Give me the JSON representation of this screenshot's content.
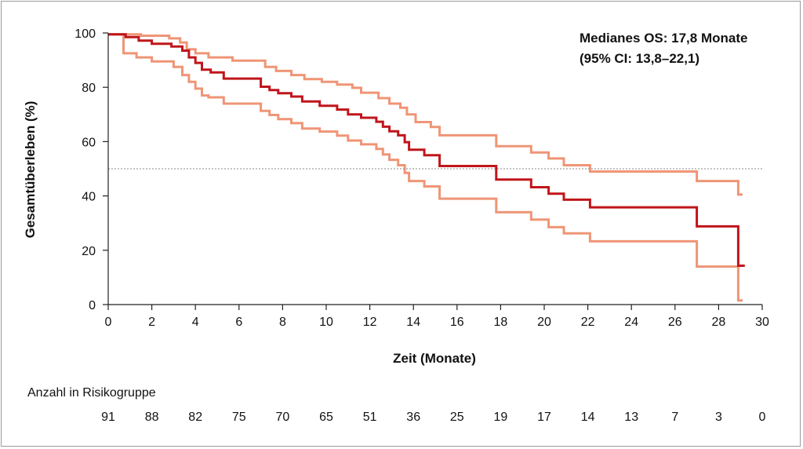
{
  "chart_data": {
    "type": "line",
    "xlabel": "Zeit (Monate)",
    "ylabel": "Gesamtüberleben (%)",
    "xlim": [
      0,
      30
    ],
    "ylim": [
      0,
      100
    ],
    "x_ticks": [
      0,
      2,
      4,
      6,
      8,
      10,
      12,
      14,
      16,
      18,
      20,
      22,
      24,
      26,
      28,
      30
    ],
    "y_ticks": [
      0,
      20,
      40,
      60,
      80,
      100
    ],
    "reference_line_y": 50,
    "annotation": [
      "Medianes OS: 17,8 Monate",
      "(95% CI: 13,8–22,1)"
    ],
    "risk_table": {
      "title": "Anzahl in Risikogruppe",
      "times": [
        0,
        2,
        4,
        6,
        8,
        10,
        12,
        14,
        16,
        18,
        20,
        22,
        24,
        26,
        28,
        30
      ],
      "counts": [
        "91",
        "88",
        "82",
        "75",
        "70",
        "65",
        "51",
        "36",
        "25",
        "19",
        "17",
        "14",
        "13",
        "7",
        "3",
        "0"
      ]
    },
    "series": [
      {
        "role": "estimate",
        "color": "#c0151b",
        "points": [
          [
            0,
            99.5
          ],
          [
            0.8,
            99.5
          ],
          [
            0.8,
            98.5
          ],
          [
            1.4,
            98.5
          ],
          [
            1.4,
            97.2
          ],
          [
            2,
            97.2
          ],
          [
            2,
            96
          ],
          [
            2.9,
            96
          ],
          [
            2.9,
            95
          ],
          [
            3.4,
            95
          ],
          [
            3.4,
            93.5
          ],
          [
            3.7,
            93.5
          ],
          [
            3.7,
            91
          ],
          [
            4,
            91
          ],
          [
            4,
            89
          ],
          [
            4.3,
            89
          ],
          [
            4.3,
            86.5
          ],
          [
            4.7,
            86.5
          ],
          [
            4.7,
            85.5
          ],
          [
            5.3,
            85.5
          ],
          [
            5.3,
            83.2
          ],
          [
            7,
            83.2
          ],
          [
            7,
            80.2
          ],
          [
            7.4,
            80.2
          ],
          [
            7.4,
            79
          ],
          [
            7.8,
            79
          ],
          [
            7.8,
            77.8
          ],
          [
            8.4,
            77.8
          ],
          [
            8.4,
            76.6
          ],
          [
            8.9,
            76.6
          ],
          [
            8.9,
            74.8
          ],
          [
            9.7,
            74.8
          ],
          [
            9.7,
            73.2
          ],
          [
            10.5,
            73.2
          ],
          [
            10.5,
            71.8
          ],
          [
            11,
            71.8
          ],
          [
            11,
            70
          ],
          [
            11.6,
            70
          ],
          [
            11.6,
            68.8
          ],
          [
            12.3,
            68.8
          ],
          [
            12.3,
            67.3
          ],
          [
            12.6,
            67.3
          ],
          [
            12.6,
            65.5
          ],
          [
            12.9,
            65.5
          ],
          [
            12.9,
            63.8
          ],
          [
            13.3,
            63.8
          ],
          [
            13.3,
            62.3
          ],
          [
            13.6,
            62.3
          ],
          [
            13.6,
            59.8
          ],
          [
            13.8,
            59.8
          ],
          [
            13.8,
            57
          ],
          [
            14.5,
            57
          ],
          [
            14.5,
            55
          ],
          [
            15.2,
            55
          ],
          [
            15.2,
            51
          ],
          [
            17.8,
            51
          ],
          [
            17.8,
            46
          ],
          [
            19.4,
            46
          ],
          [
            19.4,
            43.2
          ],
          [
            20.2,
            43.2
          ],
          [
            20.2,
            40.8
          ],
          [
            20.9,
            40.8
          ],
          [
            20.9,
            38.6
          ],
          [
            22.1,
            38.6
          ],
          [
            22.1,
            35.8
          ],
          [
            27,
            35.8
          ],
          [
            27,
            28.8
          ],
          [
            28.9,
            28.8
          ],
          [
            28.9,
            14.3
          ],
          [
            29.2,
            14.3
          ]
        ]
      },
      {
        "role": "ci-upper",
        "color": "#ef9576",
        "points": [
          [
            0,
            99.5
          ],
          [
            1.5,
            99.5
          ],
          [
            1.5,
            99
          ],
          [
            2.8,
            99
          ],
          [
            2.8,
            98
          ],
          [
            3.3,
            98
          ],
          [
            3.3,
            96.5
          ],
          [
            3.6,
            96.5
          ],
          [
            3.6,
            94
          ],
          [
            4,
            94
          ],
          [
            4,
            92.5
          ],
          [
            4.6,
            92.5
          ],
          [
            4.6,
            91
          ],
          [
            5.7,
            91
          ],
          [
            5.7,
            89.8
          ],
          [
            7.2,
            89.8
          ],
          [
            7.2,
            87.5
          ],
          [
            7.7,
            87.5
          ],
          [
            7.7,
            86
          ],
          [
            8.4,
            86
          ],
          [
            8.4,
            84.5
          ],
          [
            9,
            84.5
          ],
          [
            9,
            83
          ],
          [
            9.8,
            83
          ],
          [
            9.8,
            82
          ],
          [
            10.5,
            82
          ],
          [
            10.5,
            81
          ],
          [
            11.2,
            81
          ],
          [
            11.2,
            79.8
          ],
          [
            11.6,
            79.8
          ],
          [
            11.6,
            78
          ],
          [
            12.4,
            78
          ],
          [
            12.4,
            76
          ],
          [
            12.9,
            76
          ],
          [
            12.9,
            74
          ],
          [
            13.4,
            74
          ],
          [
            13.4,
            72.5
          ],
          [
            13.7,
            72.5
          ],
          [
            13.7,
            70
          ],
          [
            14.1,
            70
          ],
          [
            14.1,
            67.2
          ],
          [
            14.8,
            67.2
          ],
          [
            14.8,
            65.4
          ],
          [
            15.2,
            65.4
          ],
          [
            15.2,
            62.3
          ],
          [
            17.8,
            62.3
          ],
          [
            17.8,
            58.3
          ],
          [
            19.4,
            58.3
          ],
          [
            19.4,
            56
          ],
          [
            20.2,
            56
          ],
          [
            20.2,
            53.8
          ],
          [
            20.9,
            53.8
          ],
          [
            20.9,
            51.3
          ],
          [
            22.1,
            51.3
          ],
          [
            22.1,
            49
          ],
          [
            27,
            49
          ],
          [
            27,
            45.5
          ],
          [
            28.9,
            45.5
          ],
          [
            28.9,
            40.5
          ],
          [
            29.1,
            40.5
          ]
        ]
      },
      {
        "role": "ci-lower",
        "color": "#ef9576",
        "points": [
          [
            0,
            99.5
          ],
          [
            0.7,
            99.5
          ],
          [
            0.7,
            92.5
          ],
          [
            1.3,
            92.5
          ],
          [
            1.3,
            91
          ],
          [
            2,
            91
          ],
          [
            2,
            89.5
          ],
          [
            3,
            89.5
          ],
          [
            3,
            87.5
          ],
          [
            3.4,
            87.5
          ],
          [
            3.4,
            84.5
          ],
          [
            3.7,
            84.5
          ],
          [
            3.7,
            82
          ],
          [
            4,
            82
          ],
          [
            4,
            79.5
          ],
          [
            4.3,
            79.5
          ],
          [
            4.3,
            77
          ],
          [
            4.6,
            77
          ],
          [
            4.6,
            76.3
          ],
          [
            5.3,
            76.3
          ],
          [
            5.3,
            74
          ],
          [
            7,
            74
          ],
          [
            7,
            71.3
          ],
          [
            7.4,
            71.3
          ],
          [
            7.4,
            69.8
          ],
          [
            7.8,
            69.8
          ],
          [
            7.8,
            68.3
          ],
          [
            8.4,
            68.3
          ],
          [
            8.4,
            66.8
          ],
          [
            8.9,
            66.8
          ],
          [
            8.9,
            64.8
          ],
          [
            9.7,
            64.8
          ],
          [
            9.7,
            63.7
          ],
          [
            10.5,
            63.7
          ],
          [
            10.5,
            62.2
          ],
          [
            11,
            62.2
          ],
          [
            11,
            60.4
          ],
          [
            11.6,
            60.4
          ],
          [
            11.6,
            59
          ],
          [
            12.3,
            59
          ],
          [
            12.3,
            57.3
          ],
          [
            12.6,
            57.3
          ],
          [
            12.6,
            55.3
          ],
          [
            12.9,
            55.3
          ],
          [
            12.9,
            53.3
          ],
          [
            13.3,
            53.3
          ],
          [
            13.3,
            51.3
          ],
          [
            13.6,
            51.3
          ],
          [
            13.6,
            48.5
          ],
          [
            13.8,
            48.5
          ],
          [
            13.8,
            45.5
          ],
          [
            14.5,
            45.5
          ],
          [
            14.5,
            43.5
          ],
          [
            15.2,
            43.5
          ],
          [
            15.2,
            39
          ],
          [
            17.8,
            39
          ],
          [
            17.8,
            34
          ],
          [
            19.4,
            34
          ],
          [
            19.4,
            31.3
          ],
          [
            20.2,
            31.3
          ],
          [
            20.2,
            28.5
          ],
          [
            20.9,
            28.5
          ],
          [
            20.9,
            26.2
          ],
          [
            22.1,
            26.2
          ],
          [
            22.1,
            23.3
          ],
          [
            27,
            23.3
          ],
          [
            27,
            14
          ],
          [
            28.9,
            14
          ],
          [
            28.9,
            1.5
          ],
          [
            29.1,
            1.5
          ]
        ]
      }
    ]
  }
}
